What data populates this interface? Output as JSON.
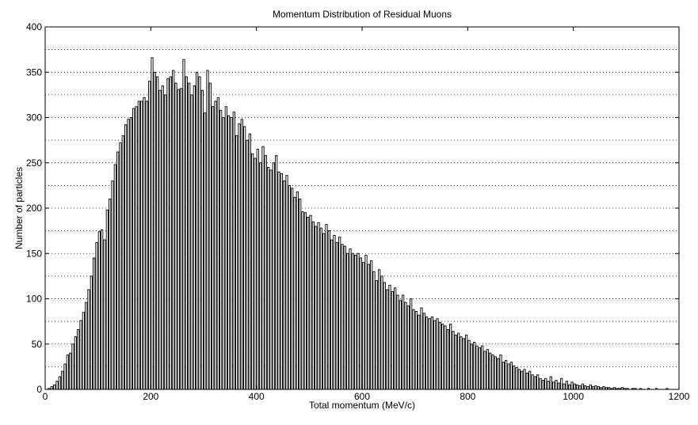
{
  "chart_data": {
    "type": "bar",
    "title": "Momentum Distribution of Residual Muons",
    "xlabel": "Total momentum (MeV/c)",
    "ylabel": "Number of particles",
    "xlim": [
      0,
      1200
    ],
    "ylim": [
      0,
      400
    ],
    "xticks": [
      0,
      200,
      400,
      600,
      800,
      1000,
      1200
    ],
    "yticks": [
      0,
      50,
      100,
      150,
      200,
      250,
      300,
      350,
      400
    ],
    "grid": "dotted horizontal lines at minor and major y ticks",
    "bin_width": 5,
    "bin_start": 0,
    "bar_fill": "#ffffff",
    "bar_edge": "#000000",
    "values": [
      0,
      1,
      3,
      5,
      9,
      14,
      20,
      28,
      38,
      40,
      50,
      58,
      66,
      76,
      85,
      96,
      110,
      125,
      145,
      162,
      174,
      176,
      165,
      198,
      210,
      230,
      248,
      262,
      272,
      280,
      292,
      298,
      300,
      310,
      312,
      318,
      318,
      322,
      318,
      340,
      366,
      350,
      345,
      330,
      335,
      325,
      343,
      345,
      352,
      338,
      331,
      332,
      364,
      345,
      338,
      325,
      335,
      350,
      345,
      330,
      305,
      352,
      338,
      312,
      318,
      322,
      308,
      300,
      312,
      302,
      300,
      306,
      280,
      293,
      298,
      290,
      275,
      282,
      260,
      255,
      265,
      250,
      268,
      258,
      245,
      242,
      250,
      258,
      240,
      238,
      230,
      236,
      225,
      222,
      212,
      218,
      210,
      196,
      195,
      190,
      192,
      185,
      180,
      184,
      178,
      172,
      182,
      175,
      165,
      170,
      162,
      168,
      160,
      158,
      150,
      155,
      150,
      148,
      150,
      145,
      140,
      148,
      138,
      142,
      130,
      120,
      132,
      125,
      118,
      110,
      115,
      108,
      112,
      104,
      98,
      104,
      96,
      92,
      100,
      88,
      86,
      82,
      90,
      84,
      80,
      78,
      80,
      76,
      78,
      74,
      72,
      70,
      66,
      72,
      64,
      60,
      62,
      58,
      56,
      60,
      54,
      50,
      52,
      48,
      46,
      48,
      42,
      44,
      40,
      38,
      36,
      34,
      38,
      30,
      32,
      28,
      30,
      26,
      24,
      22,
      20,
      22,
      18,
      20,
      16,
      14,
      16,
      12,
      10,
      12,
      9,
      14,
      8,
      10,
      7,
      12,
      6,
      9,
      5,
      8,
      6,
      5,
      4,
      6,
      4,
      3,
      5,
      3,
      4,
      3,
      2,
      3,
      2,
      2,
      1,
      2,
      1,
      1,
      2,
      1,
      1,
      0,
      1,
      1,
      0,
      1,
      0,
      0,
      1,
      0,
      0,
      1,
      0,
      0,
      0,
      1,
      0,
      0,
      0,
      0
    ]
  }
}
